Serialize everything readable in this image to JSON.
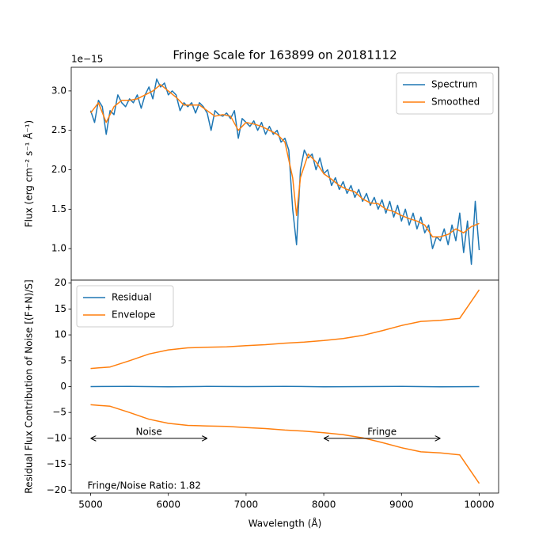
{
  "chart_data": [
    {
      "type": "line",
      "title": "Fringe Scale for 163899 on 20181112",
      "ylabel": "Flux (erg cm⁻² s⁻¹ Å⁻¹)",
      "offset_label": "1e−15",
      "xlim": [
        4750,
        10250
      ],
      "xticks": [
        5000,
        6000,
        7000,
        8000,
        9000,
        10000
      ],
      "ylim": [
        0.6,
        3.3
      ],
      "yticks": [
        {
          "value": 1,
          "label": "1.0"
        },
        {
          "value": 1.5,
          "label": "1.5"
        },
        {
          "value": 2,
          "label": "2.0"
        },
        {
          "value": 2.5,
          "label": "2.5"
        },
        {
          "value": 3,
          "label": "3.0"
        }
      ],
      "legend": "upper right",
      "series": [
        {
          "name": "Spectrum",
          "color": "#1f77b4",
          "x": [
            5000,
            5050,
            5100,
            5150,
            5200,
            5250,
            5300,
            5350,
            5400,
            5450,
            5500,
            5550,
            5600,
            5650,
            5700,
            5750,
            5800,
            5850,
            5900,
            5950,
            6000,
            6050,
            6100,
            6150,
            6200,
            6250,
            6300,
            6350,
            6400,
            6450,
            6500,
            6550,
            6600,
            6650,
            6700,
            6750,
            6800,
            6850,
            6900,
            6950,
            7000,
            7050,
            7100,
            7150,
            7200,
            7250,
            7300,
            7350,
            7400,
            7450,
            7500,
            7550,
            7600,
            7650,
            7700,
            7750,
            7800,
            7850,
            7900,
            7950,
            8000,
            8050,
            8100,
            8150,
            8200,
            8250,
            8300,
            8350,
            8400,
            8450,
            8500,
            8550,
            8600,
            8650,
            8700,
            8750,
            8800,
            8850,
            8900,
            8950,
            9000,
            9050,
            9100,
            9150,
            9200,
            9250,
            9300,
            9350,
            9400,
            9450,
            9500,
            9550,
            9600,
            9650,
            9700,
            9750,
            9800,
            9850,
            9900,
            9950,
            10000
          ],
          "values": [
            2.75,
            2.6,
            2.88,
            2.8,
            2.45,
            2.75,
            2.7,
            2.95,
            2.85,
            2.8,
            2.9,
            2.85,
            2.95,
            2.78,
            2.95,
            3.05,
            2.9,
            3.15,
            3.05,
            3.1,
            2.95,
            3.0,
            2.95,
            2.75,
            2.85,
            2.8,
            2.85,
            2.72,
            2.85,
            2.8,
            2.72,
            2.5,
            2.75,
            2.7,
            2.68,
            2.72,
            2.65,
            2.75,
            2.4,
            2.65,
            2.6,
            2.55,
            2.62,
            2.5,
            2.6,
            2.45,
            2.55,
            2.45,
            2.5,
            2.35,
            2.4,
            2.25,
            1.5,
            1.05,
            2.0,
            2.25,
            2.15,
            2.2,
            2.0,
            2.15,
            1.95,
            2.0,
            1.8,
            1.9,
            1.75,
            1.85,
            1.7,
            1.8,
            1.65,
            1.75,
            1.6,
            1.7,
            1.55,
            1.65,
            1.5,
            1.62,
            1.45,
            1.6,
            1.4,
            1.55,
            1.35,
            1.5,
            1.3,
            1.45,
            1.25,
            1.4,
            1.2,
            1.3,
            1.0,
            1.15,
            1.1,
            1.25,
            1.05,
            1.3,
            1.1,
            1.45,
            0.95,
            1.35,
            0.8,
            1.6,
            0.98
          ]
        },
        {
          "name": "Smoothed",
          "color": "#ff7f0e",
          "x": [
            5000,
            5100,
            5200,
            5300,
            5400,
            5500,
            5600,
            5700,
            5800,
            5900,
            6000,
            6100,
            6200,
            6300,
            6400,
            6500,
            6600,
            6700,
            6800,
            6900,
            7000,
            7100,
            7200,
            7300,
            7400,
            7500,
            7600,
            7650,
            7700,
            7800,
            7900,
            8000,
            8100,
            8200,
            8300,
            8400,
            8500,
            8600,
            8700,
            8800,
            8900,
            9000,
            9100,
            9200,
            9300,
            9400,
            9500,
            9600,
            9700,
            9800,
            9900,
            10000
          ],
          "values": [
            2.72,
            2.85,
            2.6,
            2.8,
            2.88,
            2.88,
            2.9,
            2.95,
            3.0,
            3.08,
            3.0,
            2.92,
            2.82,
            2.82,
            2.82,
            2.75,
            2.68,
            2.7,
            2.68,
            2.5,
            2.6,
            2.58,
            2.55,
            2.5,
            2.45,
            2.35,
            1.9,
            1.42,
            1.9,
            2.2,
            2.1,
            1.95,
            1.88,
            1.8,
            1.75,
            1.72,
            1.63,
            1.58,
            1.57,
            1.5,
            1.47,
            1.42,
            1.38,
            1.35,
            1.3,
            1.15,
            1.15,
            1.18,
            1.25,
            1.2,
            1.28,
            1.32
          ]
        }
      ]
    },
    {
      "type": "line",
      "xlabel": "Wavelength (Å)",
      "ylabel": "Residual Flux Contribution of Noise [(F+N)/S]",
      "xlim": [
        4750,
        10250
      ],
      "xticks": [
        5000,
        6000,
        7000,
        8000,
        9000,
        10000
      ],
      "ylim": [
        -20.57,
        20.57
      ],
      "yticks": [
        {
          "value": -20,
          "label": "−20"
        },
        {
          "value": -15,
          "label": "−15"
        },
        {
          "value": -10,
          "label": "−10"
        },
        {
          "value": -5,
          "label": "−5"
        },
        0,
        5,
        10,
        15,
        20
      ],
      "legend": "upper left",
      "series": [
        {
          "name": "Residual",
          "color": "#1f77b4",
          "x": [
            5000,
            5500,
            6000,
            6500,
            7000,
            7500,
            8000,
            8500,
            9000,
            9500,
            10000
          ],
          "values": [
            0.0,
            0.05,
            -0.05,
            0.03,
            0.0,
            0.05,
            -0.03,
            0.0,
            0.05,
            -0.05,
            0.0
          ]
        },
        {
          "name": "Envelope",
          "color": "#ff7f0e",
          "x": [
            5000,
            5250,
            5500,
            5750,
            6000,
            6250,
            6500,
            6750,
            7000,
            7250,
            7500,
            7750,
            8000,
            8250,
            8500,
            8750,
            9000,
            9250,
            9500,
            9750,
            10000
          ],
          "values": [
            3.5,
            3.8,
            5.0,
            6.3,
            7.1,
            7.5,
            7.6,
            7.7,
            7.9,
            8.1,
            8.4,
            8.6,
            8.9,
            9.3,
            9.9,
            10.8,
            11.8,
            12.6,
            12.8,
            13.2,
            18.7
          ],
          "lower": [
            -3.5,
            -3.8,
            -5.0,
            -6.3,
            -7.1,
            -7.5,
            -7.6,
            -7.7,
            -7.9,
            -8.1,
            -8.4,
            -8.6,
            -8.9,
            -9.3,
            -9.9,
            -10.8,
            -11.8,
            -12.6,
            -12.8,
            -13.2,
            -18.7
          ]
        }
      ],
      "arrows": [
        {
          "text": "Noise",
          "start": 5000,
          "end": 6500,
          "y": -10
        },
        {
          "text": "Fringe",
          "start": 8000,
          "end": 9500,
          "y": -10
        }
      ],
      "annotations": [
        {
          "text": "Fringe/Noise Ratio: 1.82",
          "x": 5000,
          "y": -19.2
        }
      ]
    }
  ]
}
